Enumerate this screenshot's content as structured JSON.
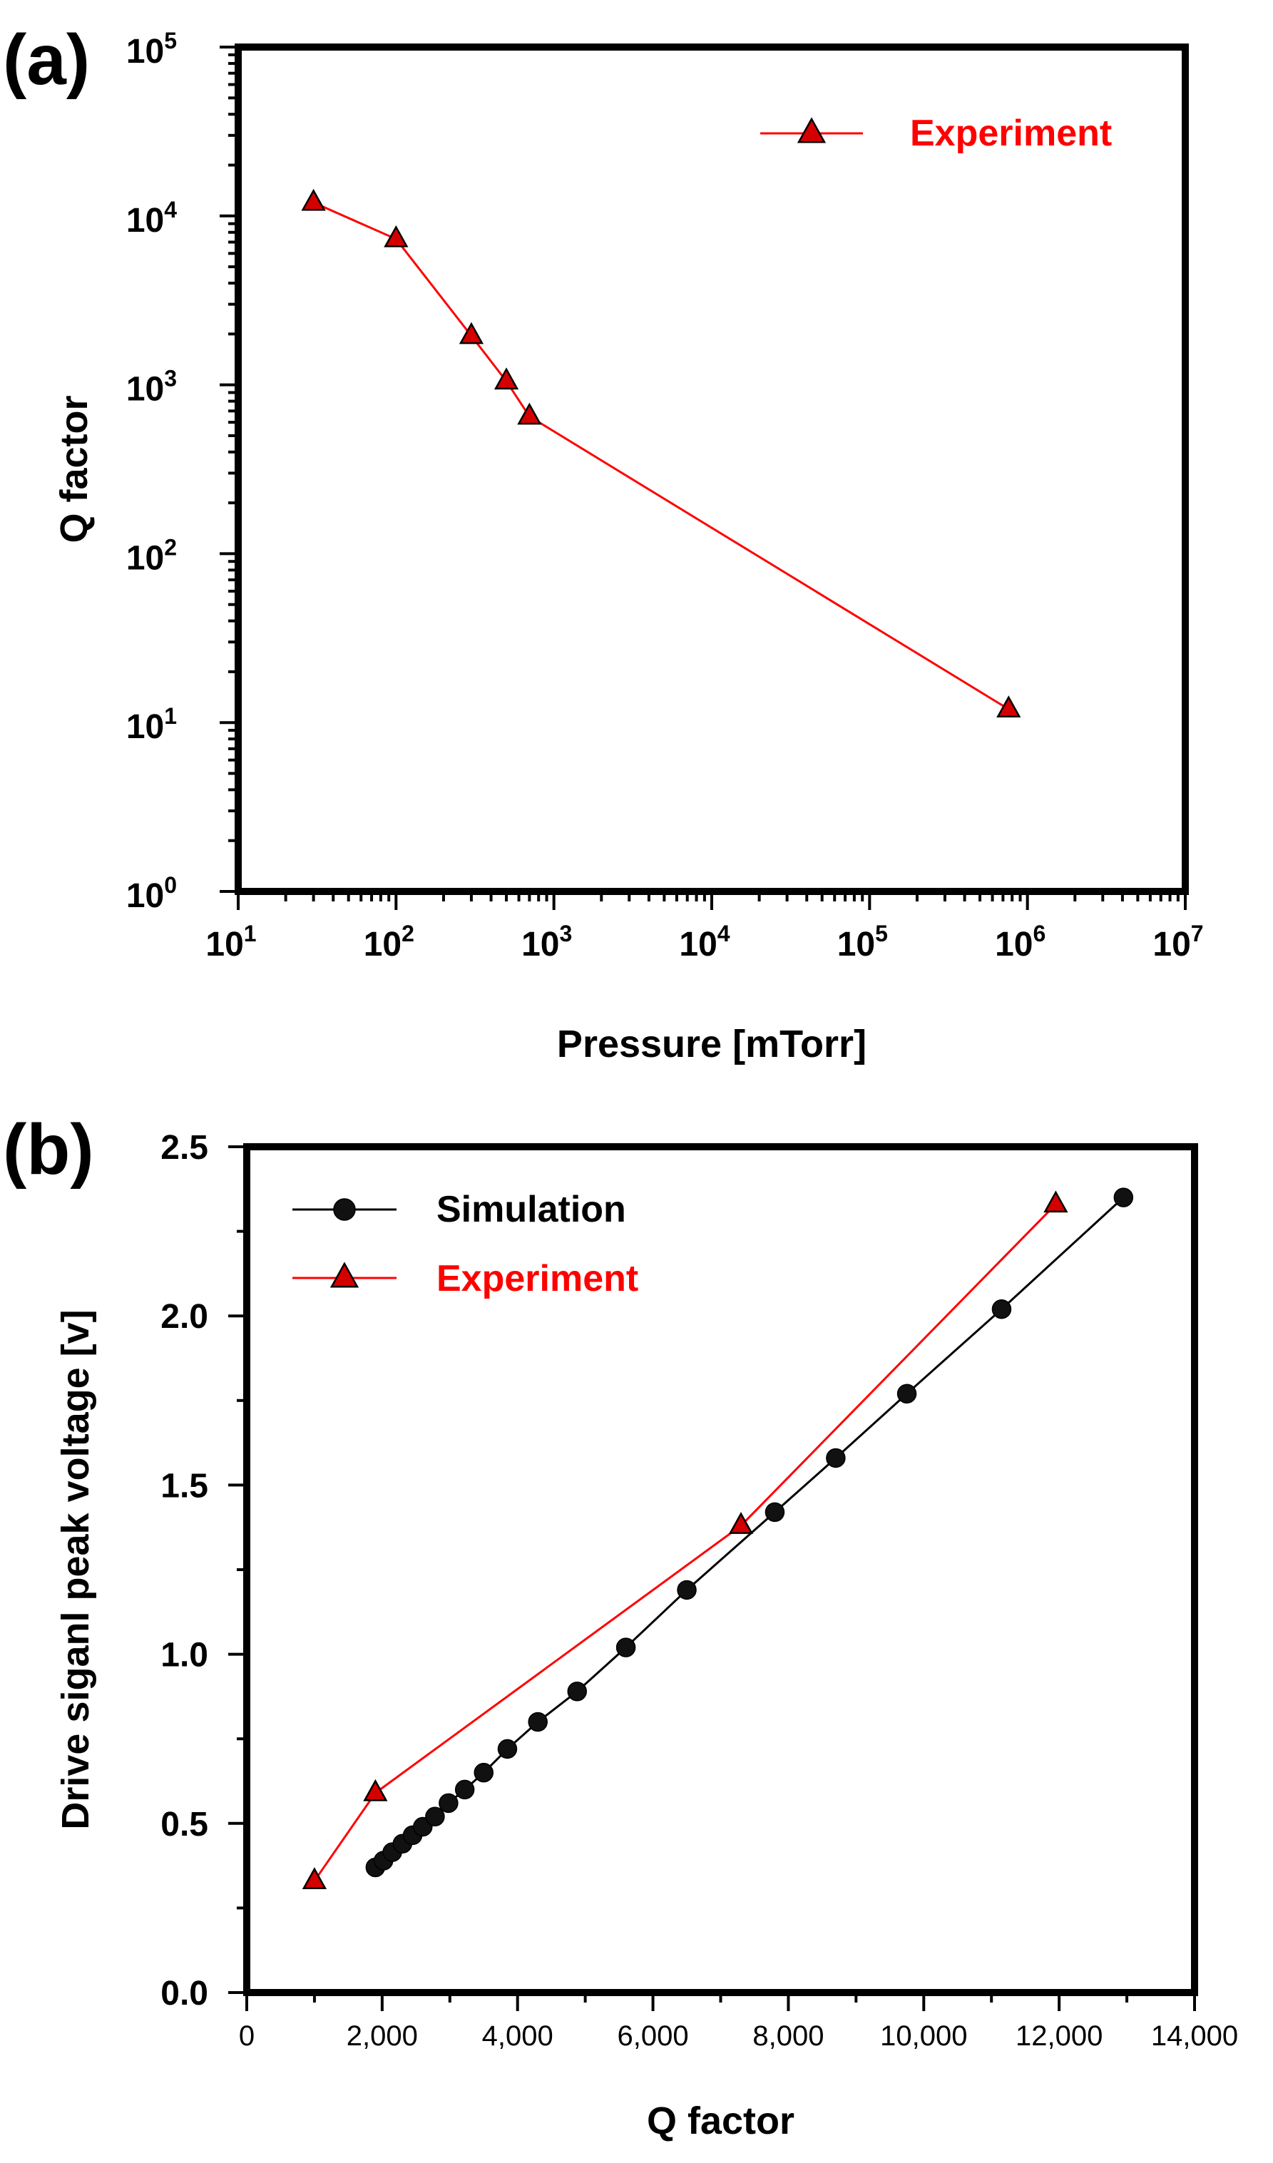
{
  "colors": {
    "experiment": "#ff0000",
    "simulation": "#000000",
    "marker_fill": "#d40000",
    "axis": "#000000"
  },
  "chart_data": [
    {
      "panel_label": "(a)",
      "type": "line",
      "xscale": "log",
      "yscale": "log",
      "title": "",
      "xlabel": "Pressure [mTorr]",
      "ylabel": "Q factor",
      "xlim": [
        10,
        10000000
      ],
      "ylim": [
        1,
        100000
      ],
      "xticks": [
        {
          "value": 10,
          "base": "10",
          "exp": "1"
        },
        {
          "value": 100,
          "base": "10",
          "exp": "2"
        },
        {
          "value": 1000,
          "base": "10",
          "exp": "3"
        },
        {
          "value": 10000,
          "base": "10",
          "exp": "4"
        },
        {
          "value": 100000,
          "base": "10",
          "exp": "5"
        },
        {
          "value": 1000000,
          "base": "10",
          "exp": "6"
        },
        {
          "value": 10000000,
          "base": "10",
          "exp": "7"
        }
      ],
      "yticks": [
        {
          "value": 1,
          "base": "10",
          "exp": "0"
        },
        {
          "value": 10,
          "base": "10",
          "exp": "1"
        },
        {
          "value": 100,
          "base": "10",
          "exp": "2"
        },
        {
          "value": 1000,
          "base": "10",
          "exp": "3"
        },
        {
          "value": 10000,
          "base": "10",
          "exp": "4"
        },
        {
          "value": 100000,
          "base": "10",
          "exp": "5"
        }
      ],
      "grid": false,
      "legend_position": "top-right",
      "series": [
        {
          "name": "Experiment",
          "marker": "triangle",
          "color": "#ff0000",
          "x": [
            30,
            100,
            300,
            500,
            700,
            760000
          ],
          "y": [
            12000,
            7300,
            1950,
            1050,
            650,
            12
          ]
        }
      ]
    },
    {
      "panel_label": "(b)",
      "type": "line",
      "xscale": "linear",
      "yscale": "linear",
      "title": "",
      "xlabel": "Q factor",
      "ylabel": "Drive siganl peak voltage [v]",
      "xlim": [
        0,
        14000
      ],
      "ylim": [
        0,
        2.5
      ],
      "xticks": [
        {
          "value": 0,
          "label": "0"
        },
        {
          "value": 2000,
          "label": "2,000"
        },
        {
          "value": 4000,
          "label": "4,000"
        },
        {
          "value": 6000,
          "label": "6,000"
        },
        {
          "value": 8000,
          "label": "8,000"
        },
        {
          "value": 10000,
          "label": "10,000"
        },
        {
          "value": 12000,
          "label": "12,000"
        },
        {
          "value": 14000,
          "label": "14,000"
        }
      ],
      "yticks": [
        {
          "value": 0,
          "label": "0.0"
        },
        {
          "value": 0.5,
          "label": "0.5"
        },
        {
          "value": 1.0,
          "label": "1.0"
        },
        {
          "value": 1.5,
          "label": "1.5"
        },
        {
          "value": 2.0,
          "label": "2.0"
        },
        {
          "value": 2.5,
          "label": "2.5"
        }
      ],
      "grid": false,
      "legend_position": "top-left",
      "series": [
        {
          "name": "Simulation",
          "marker": "circle",
          "color": "#000000",
          "x": [
            1900,
            2020,
            2150,
            2300,
            2450,
            2600,
            2780,
            2980,
            3220,
            3500,
            3850,
            4300,
            4880,
            5600,
            6500,
            7800,
            8700,
            9750,
            11150,
            12950
          ],
          "y": [
            0.37,
            0.39,
            0.415,
            0.44,
            0.465,
            0.49,
            0.52,
            0.56,
            0.6,
            0.65,
            0.72,
            0.8,
            0.89,
            1.02,
            1.19,
            1.42,
            1.58,
            1.77,
            2.02,
            2.35
          ]
        },
        {
          "name": "Experiment",
          "marker": "triangle",
          "color": "#ff0000",
          "x": [
            1000,
            1900,
            7300,
            11950
          ],
          "y": [
            0.33,
            0.59,
            1.38,
            2.33
          ]
        }
      ]
    }
  ]
}
